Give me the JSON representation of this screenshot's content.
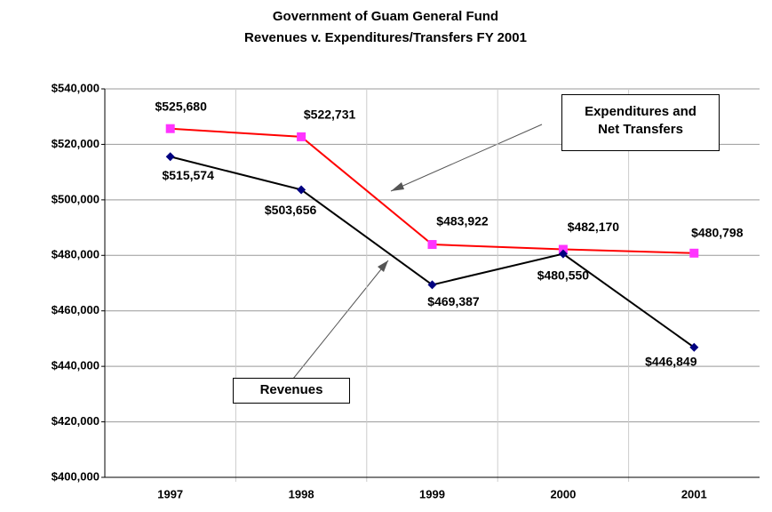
{
  "chart_data": {
    "type": "line",
    "title": "Government of Guam General Fund",
    "subtitle": "Revenues v. Expenditures/Transfers FY 2001",
    "categories": [
      "1997",
      "1998",
      "1999",
      "2000",
      "2001"
    ],
    "series": [
      {
        "name": "Expenditures and Net Transfers",
        "color": "#ff0000",
        "marker": "square",
        "marker_color": "#ff33ff",
        "values": [
          525680,
          522731,
          483922,
          482170,
          480798
        ],
        "value_labels": [
          "$525,680",
          "$522,731",
          "$483,922",
          "$482,170",
          "$480,798"
        ]
      },
      {
        "name": "Revenues",
        "color": "#000000",
        "marker": "diamond",
        "marker_color": "#000080",
        "values": [
          515574,
          503656,
          469387,
          480550,
          446849
        ],
        "value_labels": [
          "$515,574",
          "$503,656",
          "$469,387",
          "$480,550",
          "$446,849"
        ]
      }
    ],
    "ylim": [
      400000,
      540000
    ],
    "yticks": [
      {
        "value": 400000,
        "label": "$400,000"
      },
      {
        "value": 420000,
        "label": "$420,000"
      },
      {
        "value": 440000,
        "label": "$440,000"
      },
      {
        "value": 460000,
        "label": "$460,000"
      },
      {
        "value": 480000,
        "label": "$480,000"
      },
      {
        "value": 500000,
        "label": "$500,000"
      },
      {
        "value": 520000,
        "label": "$520,000"
      },
      {
        "value": 540000,
        "label": "$540,000"
      }
    ],
    "grid": true
  }
}
